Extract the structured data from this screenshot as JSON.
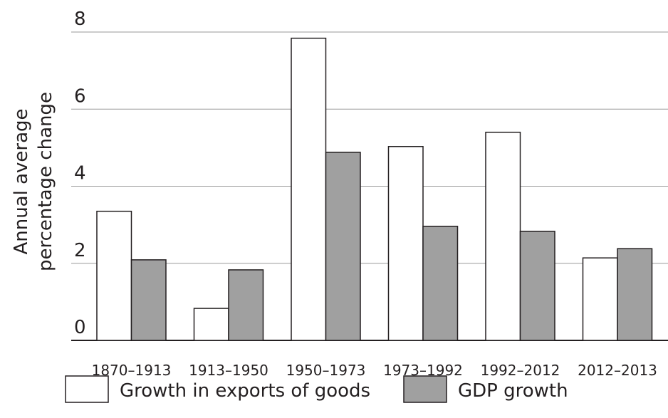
{
  "chart_data": {
    "type": "bar",
    "ylabel": [
      "Annual average",
      "percentage change"
    ],
    "categories": [
      "1870–1913",
      "1913–1950",
      "1950–1973",
      "1973–1992",
      "1992–2012",
      "2012–2013"
    ],
    "series": [
      {
        "name": "Growth in exports of goods",
        "color": "#ffffff",
        "values": [
          3.35,
          0.83,
          7.84,
          5.03,
          5.4,
          2.14
        ]
      },
      {
        "name": "GDP growth",
        "color": "#a0a0a0",
        "values": [
          2.09,
          1.83,
          4.88,
          2.96,
          2.83,
          2.38
        ]
      }
    ],
    "ylim": [
      0,
      8
    ],
    "yticks": [
      0,
      2,
      4,
      6,
      8
    ],
    "grid": true
  }
}
